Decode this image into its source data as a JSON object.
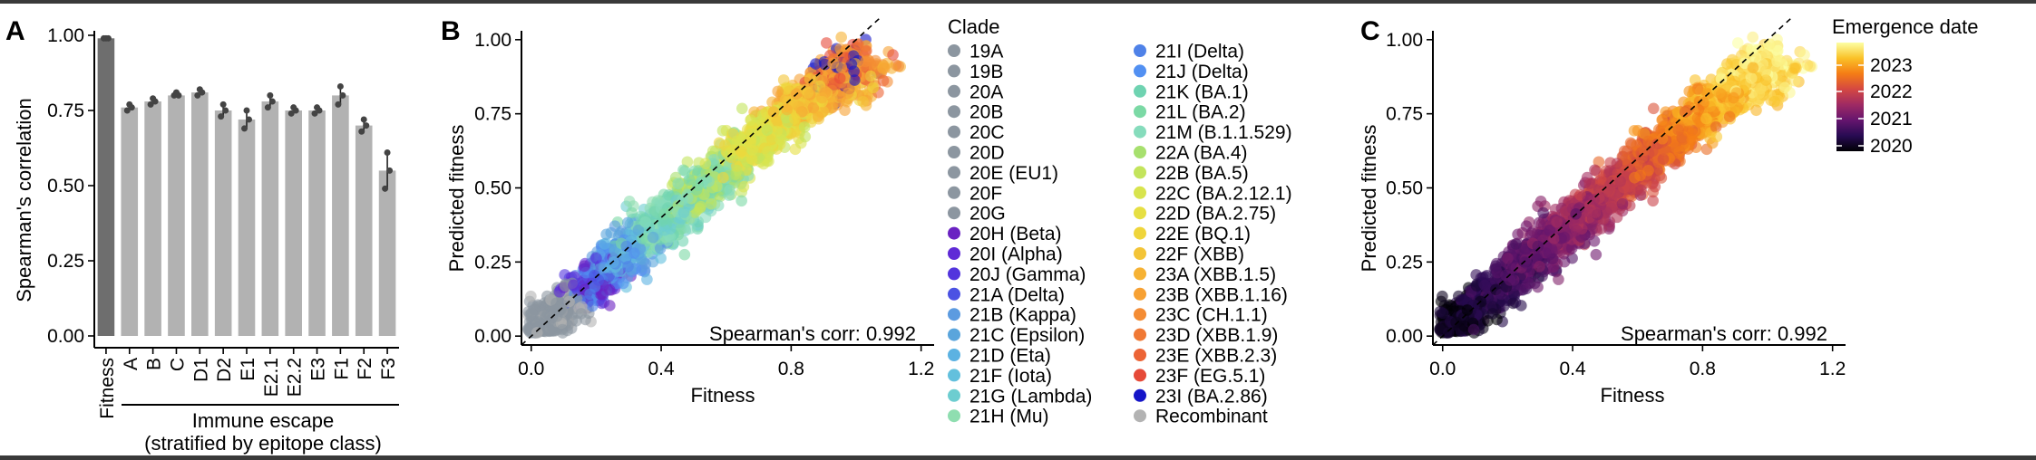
{
  "panels": [
    {
      "letter": "A"
    },
    {
      "letter": "B"
    },
    {
      "letter": "C"
    }
  ],
  "chart_data": [
    {
      "panel": "A",
      "type": "bar",
      "ylabel": "Spearman's correlation",
      "ylim": [
        0,
        1
      ],
      "yticks": [
        0.0,
        0.25,
        0.5,
        0.75,
        1.0
      ],
      "ytick_labels": [
        "0.00",
        "0.25",
        "0.50",
        "0.75",
        "1.00"
      ],
      "categories": [
        "Fitness",
        "A",
        "B",
        "C",
        "D1",
        "D2",
        "E1",
        "E2.1",
        "E2.2",
        "E3",
        "F1",
        "F2",
        "F3"
      ],
      "values": [
        0.99,
        0.76,
        0.78,
        0.8,
        0.81,
        0.75,
        0.72,
        0.78,
        0.75,
        0.75,
        0.8,
        0.7,
        0.55
      ],
      "points": [
        [
          0.99,
          0.99,
          0.99
        ],
        [
          0.75,
          0.77,
          0.76
        ],
        [
          0.77,
          0.79,
          0.78
        ],
        [
          0.8,
          0.81,
          0.8
        ],
        [
          0.8,
          0.82,
          0.81
        ],
        [
          0.73,
          0.77,
          0.75
        ],
        [
          0.69,
          0.75,
          0.72
        ],
        [
          0.76,
          0.8,
          0.78
        ],
        [
          0.74,
          0.76,
          0.75
        ],
        [
          0.74,
          0.76,
          0.75
        ],
        [
          0.77,
          0.83,
          0.8
        ],
        [
          0.68,
          0.72,
          0.7
        ],
        [
          0.49,
          0.61,
          0.55
        ]
      ],
      "group_label_line1": "Immune escape",
      "group_label_line2": "(stratified by epitope class)",
      "colors": {
        "fitness_bar": "#6e6e6e",
        "escape_bar": "#b2b2b2",
        "points": "#444444"
      }
    },
    {
      "panel": "B",
      "type": "scatter",
      "xlabel": "Fitness",
      "ylabel": "Predicted fitness",
      "xlim": [
        -0.03,
        1.24
      ],
      "ylim": [
        -0.03,
        1.03
      ],
      "xticks": [
        0.0,
        0.4,
        0.8,
        1.2
      ],
      "xtick_labels": [
        "0.0",
        "0.4",
        "0.8",
        "1.2"
      ],
      "yticks": [
        0.0,
        0.25,
        0.5,
        0.75,
        1.0
      ],
      "ytick_labels": [
        "0.00",
        "0.25",
        "0.50",
        "0.75",
        "1.00"
      ],
      "annotation": "Spearman's corr: 0.992",
      "legend_title": "Clade",
      "legend": [
        {
          "label": "19A",
          "color": "#8c96a0"
        },
        {
          "label": "19B",
          "color": "#8c96a0"
        },
        {
          "label": "20A",
          "color": "#8c96a0"
        },
        {
          "label": "20B",
          "color": "#8c96a0"
        },
        {
          "label": "20C",
          "color": "#8c96a0"
        },
        {
          "label": "20D",
          "color": "#8c96a0"
        },
        {
          "label": "20E (EU1)",
          "color": "#8c96a0"
        },
        {
          "label": "20F",
          "color": "#8c96a0"
        },
        {
          "label": "20G",
          "color": "#8c96a0"
        },
        {
          "label": "20H (Beta)",
          "color": "#6a22c2"
        },
        {
          "label": "20I (Alpha)",
          "color": "#5f2ad6"
        },
        {
          "label": "20J (Gamma)",
          "color": "#5335dd"
        },
        {
          "label": "21A (Delta)",
          "color": "#4b52e3"
        },
        {
          "label": "21B (Kappa)",
          "color": "#5c9be0"
        },
        {
          "label": "21C (Epsilon)",
          "color": "#5aa5dc"
        },
        {
          "label": "21D (Eta)",
          "color": "#5cb2e2"
        },
        {
          "label": "21F (Iota)",
          "color": "#63c0dd"
        },
        {
          "label": "21G (Lambda)",
          "color": "#6dcdd0"
        },
        {
          "label": "21H (Mu)",
          "color": "#8fdeb0"
        },
        {
          "label": "21I (Delta)",
          "color": "#4f82e8"
        },
        {
          "label": "21J (Delta)",
          "color": "#5290f2"
        },
        {
          "label": "21K (BA.1)",
          "color": "#6fd3b1"
        },
        {
          "label": "21L (BA.2)",
          "color": "#7bd9a5"
        },
        {
          "label": "21M (B.1.1.529)",
          "color": "#86dcbc"
        },
        {
          "label": "22A (BA.4)",
          "color": "#a7e06e"
        },
        {
          "label": "22B (BA.5)",
          "color": "#c3e45c"
        },
        {
          "label": "22C (BA.2.12.1)",
          "color": "#d8e44e"
        },
        {
          "label": "22D (BA.2.75)",
          "color": "#e6df43"
        },
        {
          "label": "22E (BQ.1)",
          "color": "#efd53b"
        },
        {
          "label": "22F (XBB)",
          "color": "#f3c437"
        },
        {
          "label": "23A (XBB.1.5)",
          "color": "#f6b234"
        },
        {
          "label": "23B (XBB.1.16)",
          "color": "#f7a133"
        },
        {
          "label": "23C (CH.1.1)",
          "color": "#f48c34"
        },
        {
          "label": "23D (XBB.1.9)",
          "color": "#f07935"
        },
        {
          "label": "23E (XBB.2.3)",
          "color": "#ec6436"
        },
        {
          "label": "23F (EG.5.1)",
          "color": "#e64a38"
        },
        {
          "label": "23I (BA.2.86)",
          "color": "#1515c8"
        },
        {
          "label": "Recombinant",
          "color": "#b3b3b3"
        }
      ]
    },
    {
      "panel": "C",
      "type": "scatter",
      "xlabel": "Fitness",
      "ylabel": "Predicted fitness",
      "xlim": [
        -0.03,
        1.24
      ],
      "ylim": [
        -0.03,
        1.03
      ],
      "xticks": [
        0.0,
        0.4,
        0.8,
        1.2
      ],
      "xtick_labels": [
        "0.0",
        "0.4",
        "0.8",
        "1.2"
      ],
      "yticks": [
        0.0,
        0.25,
        0.5,
        0.75,
        1.0
      ],
      "ytick_labels": [
        "0.00",
        "0.25",
        "0.50",
        "0.75",
        "1.00"
      ],
      "annotation": "Spearman's corr: 0.992",
      "colorbar_title": "Emergence date",
      "colorbar_ticks": [
        "2023",
        "2022",
        "2021",
        "2020"
      ],
      "colorbar_stops": [
        "#fcffa4",
        "#fac228",
        "#f57d15",
        "#d44842",
        "#9f2a63",
        "#65156e",
        "#280b53",
        "#000004"
      ]
    }
  ]
}
